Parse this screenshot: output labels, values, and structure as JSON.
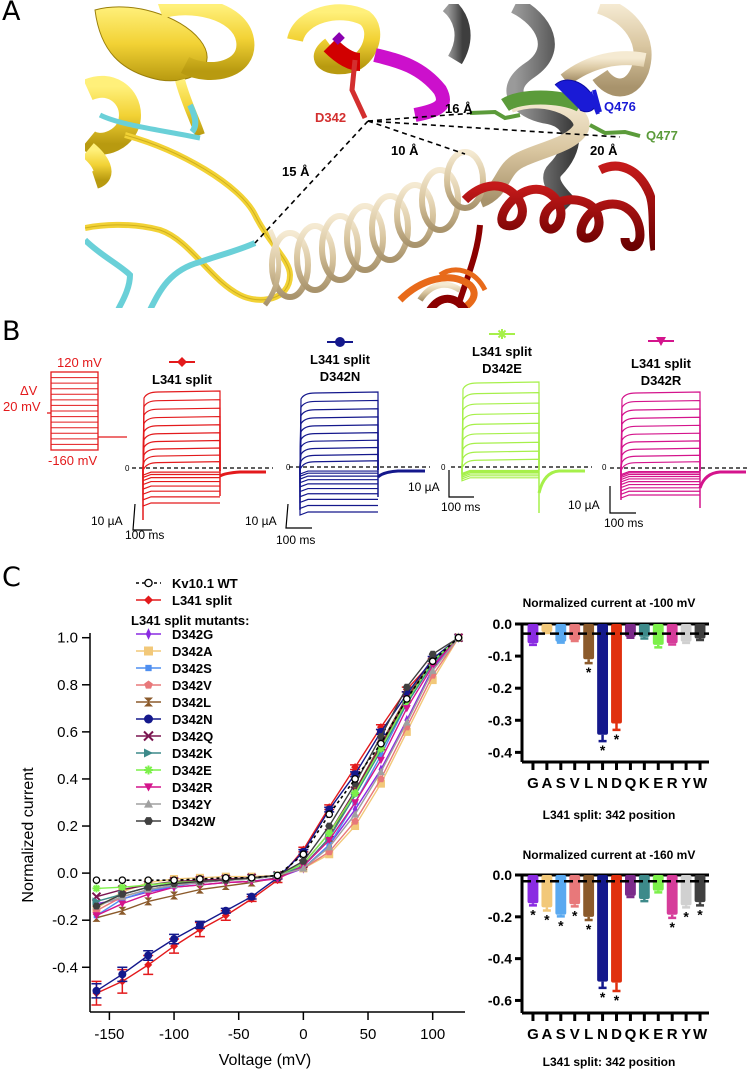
{
  "panels": {
    "A": {
      "letter": "A",
      "labels": {
        "d342": "D342",
        "q476": "Q476",
        "q477": "Q477",
        "dist_15": "15 Å",
        "dist_16": "16 Å",
        "dist_10": "10 Å",
        "dist_20": "20 Å"
      },
      "colors": {
        "d342": "#d32f2f",
        "q476": "#1a1ad6",
        "q477": "#5b9b3a"
      }
    },
    "B": {
      "letter": "B",
      "protocol": {
        "top_label": "120 mV",
        "delta_label": "ΔV",
        "step_label": "20 mV",
        "bottom_label": "-160 mV",
        "color": "#e31a1c"
      },
      "traces": [
        {
          "title_line1": "L341 split",
          "title_line2": "",
          "color": "#e31a1c",
          "marker": "diamond",
          "zero_label": "0",
          "scale_y": "10 µA",
          "scale_x": "100 ms"
        },
        {
          "title_line1": "L341 split",
          "title_line2": "D342N",
          "color": "#14188c",
          "marker": "circle",
          "zero_label": "0",
          "scale_y": "10 µA",
          "scale_x": "100 ms"
        },
        {
          "title_line1": "L341 split",
          "title_line2": "D342E",
          "color": "#a6f04a",
          "marker": "star",
          "zero_label": "0",
          "scale_y": "10 µA",
          "scale_x": "100 ms"
        },
        {
          "title_line1": "L341 split",
          "title_line2": "D342R",
          "color": "#d4148c",
          "marker": "triangle-down",
          "zero_label": "0",
          "scale_y": "10 µA",
          "scale_x": "100 ms"
        }
      ]
    },
    "C": {
      "letter": "C"
    }
  },
  "chart_data": [
    {
      "type": "line",
      "title": "",
      "xlabel": "Voltage (mV)",
      "ylabel": "Normalized current",
      "xlim": [
        -165,
        125
      ],
      "ylim": [
        -0.59,
        1.02
      ],
      "xticks": [
        -150,
        -100,
        -50,
        0,
        50,
        100
      ],
      "yticks": [
        -0.4,
        -0.2,
        0.0,
        0.2,
        0.4,
        0.6,
        0.8,
        1.0
      ],
      "ytick_labels": [
        "-0.4",
        "-0.2",
        "0.0",
        "0.2",
        "0.4",
        "0.6",
        "0.8",
        "1.0"
      ],
      "xtick_labels": [
        "-150",
        "-100",
        "-50",
        "0",
        "50",
        "100"
      ],
      "legend_placement": "top-left",
      "legend_subheader": "L341 split mutants:",
      "x": [
        -160,
        -140,
        -120,
        -100,
        -80,
        -60,
        -40,
        -20,
        0,
        20,
        40,
        60,
        80,
        100,
        120
      ],
      "series": [
        {
          "name": "Kv10.1 WT",
          "color": "#000000",
          "marker": "open-circle",
          "dashed": true,
          "values": [
            -0.03,
            -0.03,
            -0.03,
            -0.03,
            -0.025,
            -0.02,
            -0.02,
            -0.01,
            0.08,
            0.25,
            0.4,
            0.55,
            0.74,
            0.9,
            1.0
          ]
        },
        {
          "name": "L341 split",
          "color": "#e31a1c",
          "marker": "diamond",
          "values": [
            -0.51,
            -0.46,
            -0.39,
            -0.31,
            -0.24,
            -0.18,
            -0.11,
            -0.03,
            0.1,
            0.28,
            0.45,
            0.62,
            0.78,
            0.9,
            1.0
          ],
          "errors": [
            0.05,
            0.05,
            0.04,
            0.03,
            0.03,
            0.02,
            0.01,
            0.01,
            0.01,
            0.01,
            0.01,
            0.01,
            0.01,
            0.01,
            0
          ]
        },
        {
          "name": "D342G",
          "color": "#8a2be2",
          "marker": "thin-diamond",
          "values": [
            -0.13,
            -0.11,
            -0.08,
            -0.06,
            -0.05,
            -0.04,
            -0.035,
            -0.02,
            0.02,
            0.12,
            0.27,
            0.44,
            0.65,
            0.87,
            1.0
          ]
        },
        {
          "name": "D342A",
          "color": "#f2c879",
          "marker": "square",
          "values": [
            -0.15,
            -0.08,
            -0.04,
            -0.025,
            -0.02,
            -0.015,
            -0.015,
            -0.01,
            0.02,
            0.08,
            0.2,
            0.38,
            0.6,
            0.82,
            1.0
          ]
        },
        {
          "name": "D342S",
          "color": "#4f8ff0",
          "marker": "small-square",
          "values": [
            -0.18,
            -0.11,
            -0.075,
            -0.055,
            -0.04,
            -0.03,
            -0.025,
            -0.01,
            0.02,
            0.12,
            0.3,
            0.5,
            0.72,
            0.89,
            1.0
          ]
        },
        {
          "name": "D342V",
          "color": "#e8787a",
          "marker": "pentagon",
          "values": [
            -0.16,
            -0.1,
            -0.07,
            -0.05,
            -0.04,
            -0.03,
            -0.025,
            -0.01,
            0.02,
            0.09,
            0.22,
            0.4,
            0.62,
            0.84,
            1.0
          ]
        },
        {
          "name": "D342L",
          "color": "#8b5a2b",
          "marker": "hourglass",
          "values": [
            -0.19,
            -0.16,
            -0.12,
            -0.095,
            -0.07,
            -0.055,
            -0.04,
            -0.02,
            0.03,
            0.15,
            0.35,
            0.55,
            0.75,
            0.9,
            1.0
          ]
        },
        {
          "name": "D342N",
          "color": "#14188c",
          "marker": "circle",
          "values": [
            -0.5,
            -0.43,
            -0.35,
            -0.28,
            -0.22,
            -0.16,
            -0.1,
            -0.02,
            0.09,
            0.27,
            0.42,
            0.6,
            0.76,
            0.91,
            1.0
          ],
          "errors": [
            0.03,
            0.03,
            0.02,
            0.02,
            0.015,
            0.01,
            0.01,
            0.005,
            0.01,
            0.01,
            0.01,
            0.01,
            0.01,
            0.01,
            0
          ]
        },
        {
          "name": "D342Q",
          "color": "#7b1550",
          "marker": "x",
          "values": [
            -0.1,
            -0.07,
            -0.05,
            -0.035,
            -0.03,
            -0.025,
            -0.02,
            -0.01,
            0.04,
            0.17,
            0.35,
            0.54,
            0.74,
            0.9,
            1.0
          ]
        },
        {
          "name": "D342K",
          "color": "#3d8a8a",
          "marker": "triangle-right",
          "values": [
            -0.12,
            -0.09,
            -0.06,
            -0.045,
            -0.035,
            -0.03,
            -0.025,
            -0.01,
            0.03,
            0.15,
            0.33,
            0.52,
            0.72,
            0.89,
            1.0
          ]
        },
        {
          "name": "D342E",
          "color": "#7cf04a",
          "marker": "star",
          "values": [
            -0.065,
            -0.06,
            -0.05,
            -0.04,
            -0.035,
            -0.03,
            -0.025,
            -0.01,
            0.04,
            0.17,
            0.34,
            0.53,
            0.73,
            0.9,
            1.0
          ]
        },
        {
          "name": "D342R",
          "color": "#d4148c",
          "marker": "triangle-down",
          "values": [
            -0.18,
            -0.13,
            -0.09,
            -0.06,
            -0.05,
            -0.04,
            -0.035,
            -0.025,
            0.03,
            0.14,
            0.3,
            0.48,
            0.7,
            0.88,
            1.0
          ]
        },
        {
          "name": "D342Y",
          "color": "#a0a0a0",
          "marker": "triangle-up",
          "values": [
            -0.14,
            -0.1,
            -0.07,
            -0.05,
            -0.04,
            -0.03,
            -0.025,
            -0.01,
            0.02,
            0.11,
            0.25,
            0.43,
            0.64,
            0.86,
            1.0
          ]
        },
        {
          "name": "D342W",
          "color": "#404040",
          "marker": "hexagon",
          "values": [
            -0.14,
            -0.09,
            -0.06,
            -0.045,
            -0.035,
            -0.03,
            -0.02,
            -0.01,
            0.05,
            0.2,
            0.38,
            0.58,
            0.79,
            0.93,
            1.0
          ]
        }
      ]
    },
    {
      "type": "bar",
      "title": "Normalized current at -100 mV",
      "xlabel": "L341 split: 342 position",
      "ylabel": "",
      "ylim": [
        -0.43,
        0.0
      ],
      "yticks": [
        0.0,
        -0.1,
        -0.2,
        -0.3,
        -0.4
      ],
      "ytick_labels": [
        "0.0",
        "-0.1",
        "-0.2",
        "-0.3",
        "-0.4"
      ],
      "reference_line": -0.03,
      "categories": [
        "G",
        "A",
        "S",
        "V",
        "L",
        "N",
        "D",
        "Q",
        "K",
        "E",
        "R",
        "Y",
        "W"
      ],
      "values": [
        -0.06,
        -0.025,
        -0.055,
        -0.05,
        -0.11,
        -0.345,
        -0.31,
        -0.04,
        -0.04,
        -0.065,
        -0.06,
        -0.055,
        -0.045
      ],
      "errors": [
        0.005,
        0.003,
        0.003,
        0.003,
        0.012,
        0.02,
        0.02,
        0.003,
        0.005,
        0.008,
        0.004,
        0.004,
        0.005
      ],
      "significant": [
        false,
        false,
        false,
        false,
        true,
        true,
        true,
        false,
        false,
        false,
        false,
        false,
        false
      ],
      "colors": [
        "#8a2be2",
        "#f2c879",
        "#5aa9f0",
        "#e8787a",
        "#8b5a2b",
        "#14188c",
        "#e0300e",
        "#7b2a8a",
        "#3d8a8a",
        "#7cf04a",
        "#d63c9a",
        "#d0d0d0",
        "#404040"
      ]
    },
    {
      "type": "bar",
      "title": "Normalized current at -160 mV",
      "xlabel": "L341 split: 342 position",
      "ylabel": "",
      "ylim": [
        -0.66,
        0.0
      ],
      "yticks": [
        0.0,
        -0.2,
        -0.4,
        -0.6
      ],
      "ytick_labels": [
        "0.0",
        "-0.2",
        "-0.4",
        "-0.6"
      ],
      "reference_line": -0.03,
      "categories": [
        "G",
        "A",
        "S",
        "V",
        "L",
        "N",
        "D",
        "Q",
        "K",
        "E",
        "R",
        "Y",
        "W"
      ],
      "values": [
        -0.135,
        -0.155,
        -0.19,
        -0.14,
        -0.2,
        -0.51,
        -0.515,
        -0.1,
        -0.115,
        -0.075,
        -0.19,
        -0.145,
        -0.13
      ],
      "errors": [
        0.01,
        0.015,
        0.008,
        0.01,
        0.015,
        0.03,
        0.04,
        0.005,
        0.01,
        0.008,
        0.015,
        0.01,
        0.015
      ],
      "significant": [
        true,
        true,
        true,
        true,
        true,
        true,
        true,
        false,
        false,
        false,
        true,
        true,
        true
      ],
      "colors": [
        "#8a2be2",
        "#f2c879",
        "#5aa9f0",
        "#e8787a",
        "#8b5a2b",
        "#14188c",
        "#e0300e",
        "#7b2a8a",
        "#3d8a8a",
        "#7cf04a",
        "#d63c9a",
        "#d0d0d0",
        "#404040"
      ]
    }
  ]
}
